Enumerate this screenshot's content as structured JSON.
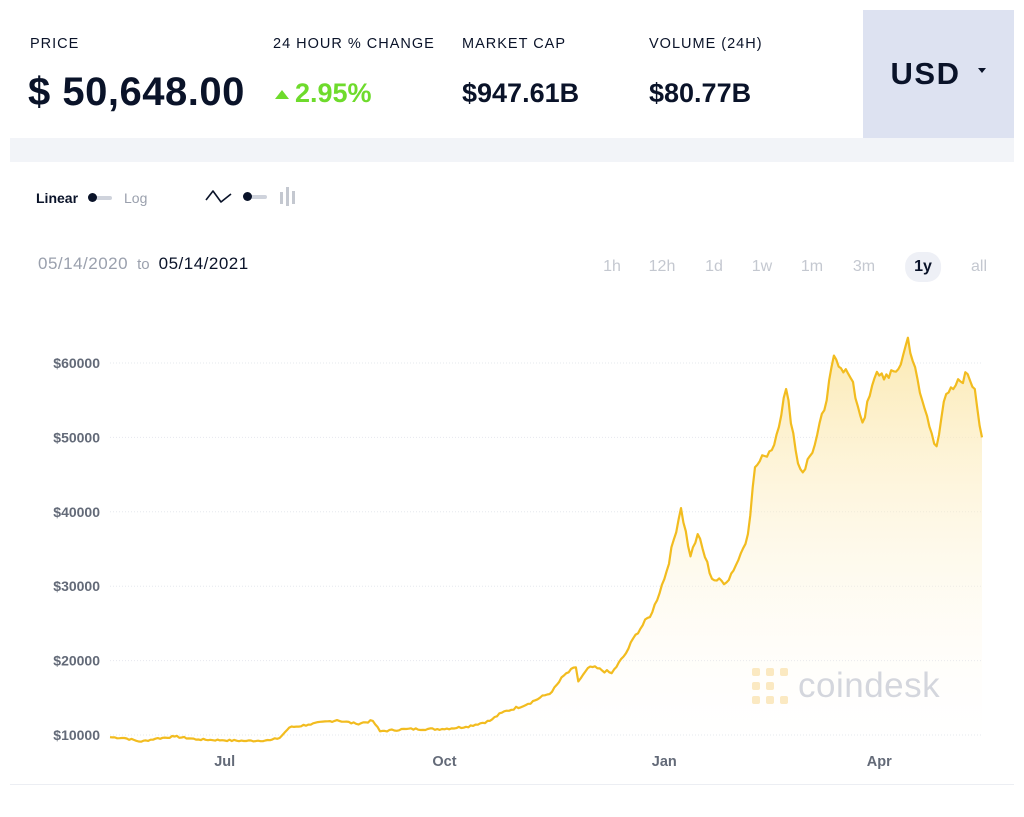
{
  "stats": {
    "price_label": "PRICE",
    "price_value": "$ 50,648.00",
    "change_label": "24 HOUR % CHANGE",
    "change_value": "2.95%",
    "market_cap_label": "MARKET CAP",
    "market_cap_value": "$947.61B",
    "volume_label": "VOLUME (24H)",
    "volume_value": "$80.77B"
  },
  "currency": {
    "selected": "USD"
  },
  "controls": {
    "scale_linear": "Linear",
    "scale_log": "Log",
    "chart_type_icons": [
      "line-chart-icon",
      "candlestick-chart-icon"
    ]
  },
  "range": {
    "from": "05/14/2020",
    "to_word": "to",
    "to": "05/14/2021"
  },
  "periods": [
    {
      "label": "1h",
      "active": false
    },
    {
      "label": "12h",
      "active": false
    },
    {
      "label": "1d",
      "active": false
    },
    {
      "label": "1w",
      "active": false
    },
    {
      "label": "1m",
      "active": false
    },
    {
      "label": "3m",
      "active": false
    },
    {
      "label": "1y",
      "active": true
    },
    {
      "label": "all",
      "active": false
    }
  ],
  "watermark": {
    "text": "coindesk",
    "icon": "coindesk-logo-icon"
  },
  "colors": {
    "line": "#f2bc1f",
    "fill_top": "#fbe9b0",
    "change_up": "#6edb2c",
    "currency_bg": "#dde2f1"
  },
  "chart_data": {
    "type": "area",
    "title": "",
    "xlabel": "",
    "ylabel": "",
    "x_start": "2020-05-14",
    "x_end": "2021-05-14",
    "ylim": [
      10000,
      63000
    ],
    "yticks": [
      {
        "value": 10000,
        "label": "$10000"
      },
      {
        "value": 20000,
        "label": "$20000"
      },
      {
        "value": 30000,
        "label": "$30000"
      },
      {
        "value": 40000,
        "label": "$40000"
      },
      {
        "value": 50000,
        "label": "$50000"
      },
      {
        "value": 60000,
        "label": "$60000"
      }
    ],
    "xticks": [
      {
        "date": "2020-07-01",
        "label": "Jul"
      },
      {
        "date": "2020-10-01",
        "label": "Oct"
      },
      {
        "date": "2021-01-01",
        "label": "Jan"
      },
      {
        "date": "2021-04-01",
        "label": "Apr"
      }
    ],
    "grid": true,
    "series": [
      {
        "points": [
          [
            "2020-05-14",
            9700
          ],
          [
            "2020-05-20",
            9600
          ],
          [
            "2020-05-27",
            9100
          ],
          [
            "2020-06-02",
            9500
          ],
          [
            "2020-06-10",
            9800
          ],
          [
            "2020-06-20",
            9400
          ],
          [
            "2020-06-30",
            9300
          ],
          [
            "2020-07-10",
            9200
          ],
          [
            "2020-07-20",
            9300
          ],
          [
            "2020-07-24",
            9600
          ],
          [
            "2020-07-28",
            11000
          ],
          [
            "2020-08-05",
            11400
          ],
          [
            "2020-08-17",
            12000
          ],
          [
            "2020-08-25",
            11500
          ],
          [
            "2020-09-01",
            11900
          ],
          [
            "2020-09-04",
            10500
          ],
          [
            "2020-09-15",
            10800
          ],
          [
            "2020-09-30",
            10800
          ],
          [
            "2020-10-10",
            11100
          ],
          [
            "2020-10-20",
            11900
          ],
          [
            "2020-10-25",
            13000
          ],
          [
            "2020-11-05",
            14200
          ],
          [
            "2020-11-15",
            15800
          ],
          [
            "2020-11-20",
            18000
          ],
          [
            "2020-11-25",
            19100
          ],
          [
            "2020-11-26",
            17200
          ],
          [
            "2020-12-01",
            19200
          ],
          [
            "2020-12-10",
            18300
          ],
          [
            "2020-12-16",
            21000
          ],
          [
            "2020-12-20",
            23500
          ],
          [
            "2020-12-27",
            26500
          ],
          [
            "2021-01-02",
            32000
          ],
          [
            "2021-01-08",
            40500
          ],
          [
            "2021-01-12",
            34000
          ],
          [
            "2021-01-15",
            37000
          ],
          [
            "2021-01-21",
            31000
          ],
          [
            "2021-01-27",
            30500
          ],
          [
            "2021-02-01",
            33500
          ],
          [
            "2021-02-05",
            37000
          ],
          [
            "2021-02-08",
            46000
          ],
          [
            "2021-02-12",
            47500
          ],
          [
            "2021-02-16",
            49000
          ],
          [
            "2021-02-21",
            56500
          ],
          [
            "2021-02-26",
            46500
          ],
          [
            "2021-02-28",
            45300
          ],
          [
            "2021-03-05",
            49000
          ],
          [
            "2021-03-10",
            55000
          ],
          [
            "2021-03-13",
            61000
          ],
          [
            "2021-03-20",
            58000
          ],
          [
            "2021-03-25",
            52000
          ],
          [
            "2021-03-31",
            58800
          ],
          [
            "2021-04-05",
            58000
          ],
          [
            "2021-04-10",
            59800
          ],
          [
            "2021-04-13",
            63400
          ],
          [
            "2021-04-18",
            56000
          ],
          [
            "2021-04-23",
            50500
          ],
          [
            "2021-04-25",
            48800
          ],
          [
            "2021-04-28",
            54800
          ],
          [
            "2021-05-03",
            57000
          ],
          [
            "2021-05-08",
            58500
          ],
          [
            "2021-05-11",
            56500
          ],
          [
            "2021-05-14",
            50000
          ]
        ]
      }
    ]
  }
}
